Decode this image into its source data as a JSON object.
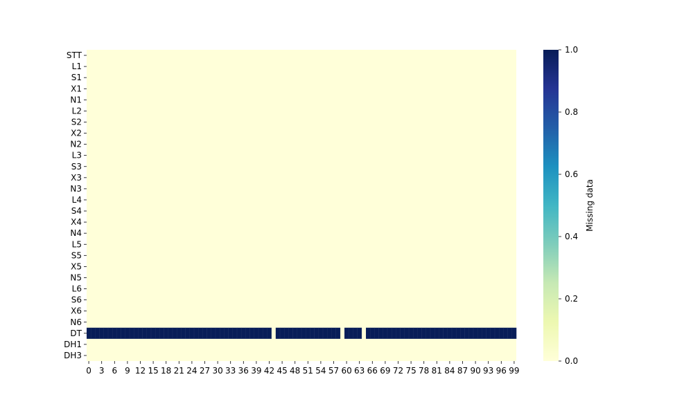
{
  "chart_data": {
    "type": "heatmap",
    "title": "",
    "xlabel": "",
    "ylabel": "",
    "rows": [
      "STT",
      "L1",
      "S1",
      "X1",
      "N1",
      "L2",
      "S2",
      "X2",
      "N2",
      "L3",
      "S3",
      "X3",
      "N3",
      "L4",
      "S4",
      "X4",
      "N4",
      "L5",
      "S5",
      "X5",
      "N5",
      "L6",
      "S6",
      "X6",
      "N6",
      "DT",
      "DH1",
      "DH3"
    ],
    "x_count": 100,
    "x_tick_labels": [
      "0",
      "3",
      "6",
      "9",
      "12",
      "15",
      "18",
      "21",
      "24",
      "27",
      "30",
      "33",
      "36",
      "39",
      "42",
      "45",
      "48",
      "51",
      "54",
      "57",
      "60",
      "63",
      "66",
      "69",
      "72",
      "75",
      "78",
      "81",
      "84",
      "87",
      "90",
      "93",
      "96",
      "99"
    ],
    "value_range": [
      0,
      1
    ],
    "missing_row": "DT",
    "present_columns_in_missing_row": [
      43,
      59,
      64
    ],
    "colorbar": {
      "label": "Missing data",
      "min": 0.0,
      "max": 1.0,
      "ticks": [
        "0.0",
        "0.2",
        "0.4",
        "0.6",
        "0.8",
        "1.0"
      ],
      "colormap": "YlGnBu",
      "colors": [
        "#ffffd9",
        "#edf8b1",
        "#c7e9b4",
        "#7fcdbb",
        "#41b6c4",
        "#1d91c0",
        "#225ea8",
        "#253494",
        "#081d58"
      ]
    },
    "cell_colors": {
      "zero": "#ffffd9",
      "one": "#081d58",
      "separator": "#ffffff"
    }
  }
}
